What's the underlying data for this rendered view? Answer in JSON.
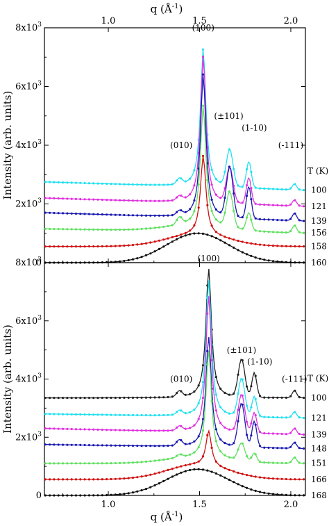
{
  "figure": {
    "top_axis_label_base": "q (",
    "top_axis_label_unit": "Å",
    "top_axis_label_exp": "-1",
    "top_axis_label_close": ")",
    "bottom_axis_label_base": "q (",
    "bottom_axis_label_unit": "Å",
    "bottom_axis_label_exp": "-1",
    "bottom_axis_label_close": ")"
  },
  "chart_data": [
    {
      "type": "line",
      "panel": "top",
      "xlabel": "q (Å-1)",
      "ylabel": "Intensity (arb. units)",
      "xlim": [
        0.65,
        2.08
      ],
      "ylim": [
        0,
        8000
      ],
      "x_ticks": [
        1.0,
        1.5,
        2.0
      ],
      "x_tick_labels": [
        "1.0",
        "1.5",
        "2.0"
      ],
      "x_ticks_position": "top",
      "y_ticks": [
        0,
        2000,
        4000,
        6000,
        8000
      ],
      "y_tick_labels": [
        {
          "base": "0",
          "exp": ""
        },
        {
          "base": "2x10",
          "exp": "3"
        },
        {
          "base": "4x10",
          "exp": "3"
        },
        {
          "base": "6x10",
          "exp": "3"
        },
        {
          "base": "8x10",
          "exp": "3"
        }
      ],
      "legend_title": "T (K)",
      "peak_labels": [
        {
          "text": "(010)",
          "x": 1.4,
          "y": 3900
        },
        {
          "text": "(100)",
          "x": 1.52,
          "y": 7900
        },
        {
          "text": "(±101)",
          "x": 1.66,
          "y": 4900
        },
        {
          "text": "(1-10)",
          "x": 1.8,
          "y": 4500
        },
        {
          "text": "(-111)",
          "x": 2.0,
          "y": 3900
        }
      ],
      "series": [
        {
          "name": "100",
          "color": "#22e0f0",
          "baseline": 2750,
          "slope": -200,
          "p_main": 4700,
          "p1": 1250,
          "p2": 900,
          "p3": 200,
          "p4": 200,
          "hump": 0
        },
        {
          "name": "121",
          "color": "#e030e0",
          "baseline": 2200,
          "slope": -200,
          "p_main": 5000,
          "p1": 1200,
          "p2": 900,
          "p3": 150,
          "p4": 200,
          "hump": 0
        },
        {
          "name": "139",
          "color": "#1a1ab0",
          "baseline": 1700,
          "slope": -200,
          "p_main": 4900,
          "p1": 1700,
          "p2": 1100,
          "p3": 150,
          "p4": 250,
          "hump": 0
        },
        {
          "name": "156",
          "color": "#60e060",
          "baseline": 1150,
          "slope": -100,
          "p_main": 4100,
          "p1": 1200,
          "p2": 600,
          "p3": 250,
          "p4": 250,
          "hump": 200
        },
        {
          "name": "158",
          "color": "#d01010",
          "baseline": 550,
          "slope": 0,
          "p_main": 2700,
          "p1": 0,
          "p2": 0,
          "p3": 0,
          "p4": 0,
          "hump": 400
        },
        {
          "name": "160",
          "color": "#111111",
          "baseline": 0,
          "slope": 0,
          "p_main": 0,
          "p1": 0,
          "p2": 0,
          "p3": 0,
          "p4": 0,
          "hump": 1000
        }
      ]
    },
    {
      "type": "line",
      "panel": "bottom",
      "xlabel": "q (Å-1)",
      "ylabel": "Intensity (arb. units)",
      "xlim": [
        0.65,
        2.08
      ],
      "ylim": [
        0,
        8000
      ],
      "x_ticks": [
        1.0,
        1.5,
        2.0
      ],
      "x_tick_labels": [
        "1.0",
        "1.5",
        "2.0"
      ],
      "x_ticks_position": "bottom",
      "y_ticks": [
        0,
        2000,
        4000,
        6000,
        8000
      ],
      "y_tick_labels": [
        {
          "base": "0",
          "exp": ""
        },
        {
          "base": "2x10",
          "exp": "3"
        },
        {
          "base": "4x10",
          "exp": "3"
        },
        {
          "base": "6x10",
          "exp": "3"
        },
        {
          "base": "8x10",
          "exp": "3"
        }
      ],
      "legend_title": "T (K)",
      "peak_labels": [
        {
          "text": "(010)",
          "x": 1.4,
          "y": 3900
        },
        {
          "text": "(100)",
          "x": 1.55,
          "y": 8050
        },
        {
          "text": "(±101)",
          "x": 1.73,
          "y": 4900
        },
        {
          "text": "(1-10)",
          "x": 1.83,
          "y": 4500
        },
        {
          "text": "(-111)",
          "x": 2.02,
          "y": 3900
        }
      ],
      "series": [
        {
          "name": "100",
          "color": "#222222",
          "baseline": 3350,
          "slope": 0,
          "p_main": 4450,
          "p1": 1300,
          "p2": 850,
          "p3": 200,
          "p4": 250,
          "hump": 0
        },
        {
          "name": "121",
          "color": "#22e0f0",
          "baseline": 2800,
          "slope": -100,
          "p_main": 4700,
          "p1": 1300,
          "p2": 700,
          "p3": 150,
          "p4": 200,
          "hump": 0
        },
        {
          "name": "139",
          "color": "#e030e0",
          "baseline": 2300,
          "slope": -150,
          "p_main": 4700,
          "p1": 1300,
          "p2": 700,
          "p3": 150,
          "p4": 200,
          "hump": 0
        },
        {
          "name": "148",
          "color": "#1a1ab0",
          "baseline": 1750,
          "slope": -100,
          "p_main": 3800,
          "p1": 1500,
          "p2": 900,
          "p3": 200,
          "p4": 200,
          "hump": 0
        },
        {
          "name": "151",
          "color": "#60e060",
          "baseline": 1100,
          "slope": 0,
          "p_main": 3700,
          "p1": 600,
          "p2": 300,
          "p3": 100,
          "p4": 200,
          "hump": 200
        },
        {
          "name": "166",
          "color": "#d01010",
          "baseline": 550,
          "slope": 0,
          "p_main": 1200,
          "p1": 0,
          "p2": 0,
          "p3": 0,
          "p4": 0,
          "hump": 500
        },
        {
          "name": "168",
          "color": "#111111",
          "baseline": 0,
          "slope": 0,
          "p_main": 0,
          "p1": 0,
          "p2": 0,
          "p3": 0,
          "p4": 0,
          "hump": 900
        }
      ]
    }
  ]
}
